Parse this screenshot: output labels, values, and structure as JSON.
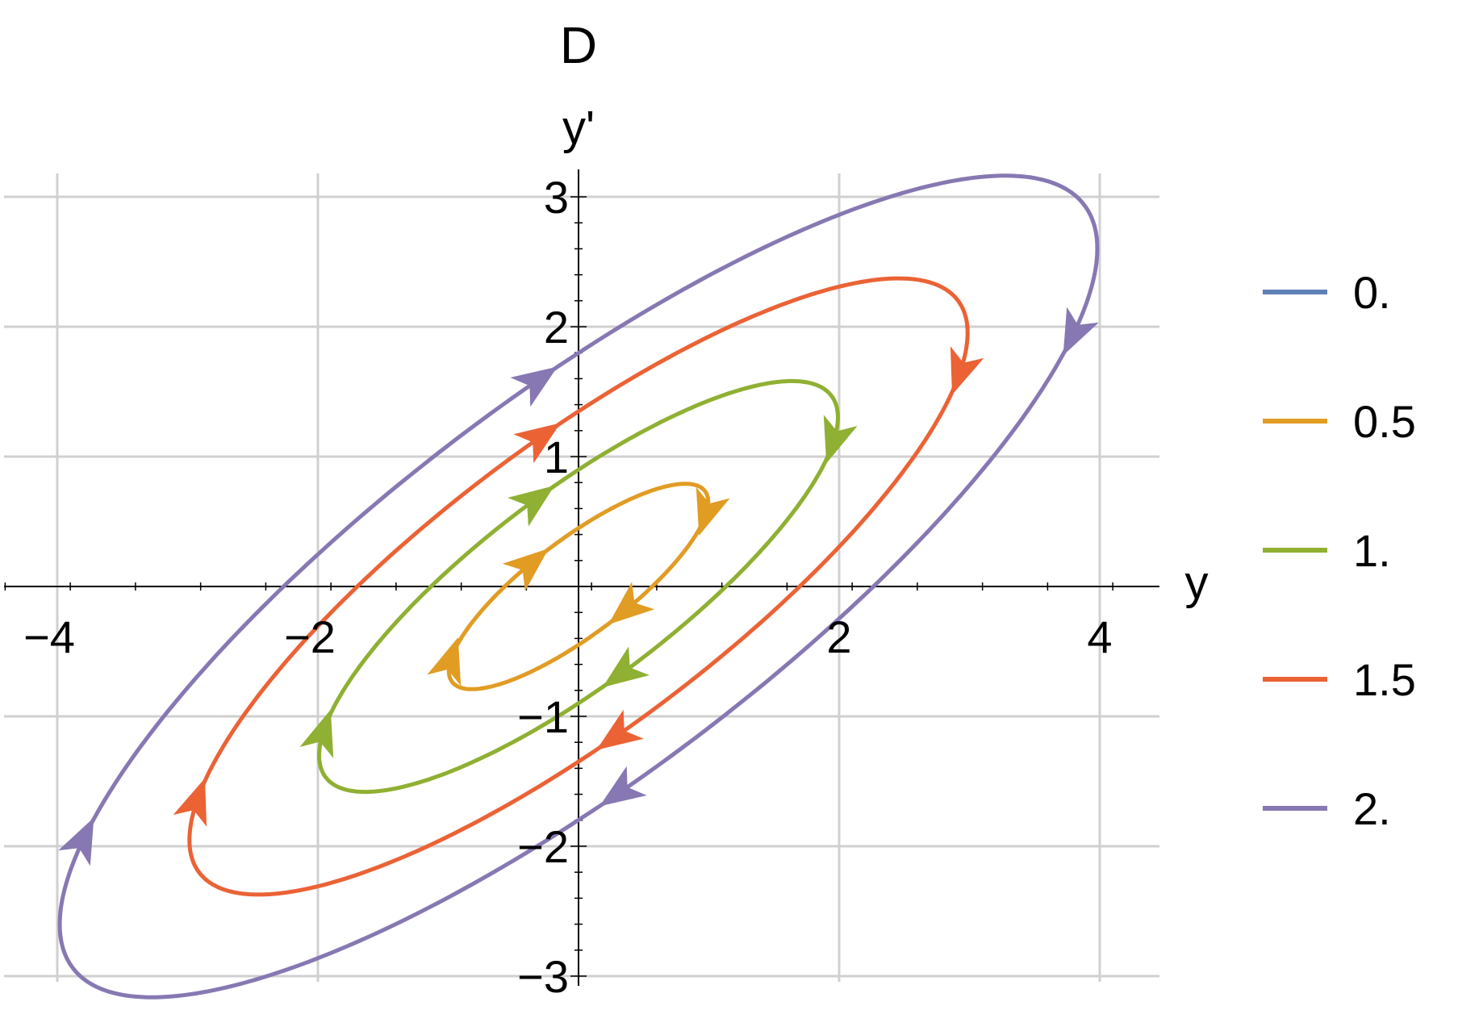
{
  "chart_data": {
    "type": "line",
    "title": "D",
    "xlabel": "y",
    "ylabel": "y'",
    "xlim": [
      -4.4,
      4.4
    ],
    "ylim": [
      -3.1,
      3.15
    ],
    "grid": true,
    "legend_position": "right",
    "x_ticks": [
      {
        "value": -4,
        "label": "−4"
      },
      {
        "value": -2,
        "label": "−2"
      },
      {
        "value": 2,
        "label": "2"
      },
      {
        "value": 4,
        "label": "4"
      }
    ],
    "y_ticks": [
      {
        "value": -3,
        "label": "−3"
      },
      {
        "value": -2,
        "label": "−2"
      },
      {
        "value": -1,
        "label": "−1"
      },
      {
        "value": 1,
        "label": "1"
      },
      {
        "value": 2,
        "label": "2"
      },
      {
        "value": 3,
        "label": "3"
      }
    ],
    "series": [
      {
        "name": "0.",
        "color": "#5e81b5",
        "orbit": {
          "a": 0,
          "b": 0
        },
        "arrow_points": []
      },
      {
        "name": "0.5",
        "color": "#e19c24",
        "orbit": {
          "a": 1,
          "b": 0.5
        },
        "arrow_points": [
          [
            1.0,
            0.55
          ],
          [
            -1.0,
            -0.55
          ],
          [
            0.45,
            -0.28
          ],
          [
            -0.45,
            0.28
          ]
        ]
      },
      {
        "name": "1.",
        "color": "#8fb032",
        "orbit": {
          "a": 2,
          "b": 1
        },
        "arrow_points": [
          [
            2.0,
            1.1
          ],
          [
            -2.0,
            -1.1
          ],
          [
            0.45,
            -0.85
          ],
          [
            -0.45,
            0.85
          ]
        ]
      },
      {
        "name": "1.5",
        "color": "#eb6235",
        "orbit": {
          "a": 3,
          "b": 1.5
        },
        "arrow_points": [
          [
            3.0,
            1.6
          ],
          [
            -3.0,
            -1.6
          ],
          [
            0.45,
            -1.35
          ],
          [
            -0.45,
            1.35
          ]
        ]
      },
      {
        "name": "2.",
        "color": "#8778b3",
        "orbit": {
          "a": 4,
          "b": 2
        },
        "arrow_points": [
          [
            4.0,
            1.85
          ],
          [
            -4.0,
            -1.85
          ],
          [
            0.45,
            -1.85
          ],
          [
            -0.45,
            1.85
          ]
        ]
      }
    ]
  }
}
